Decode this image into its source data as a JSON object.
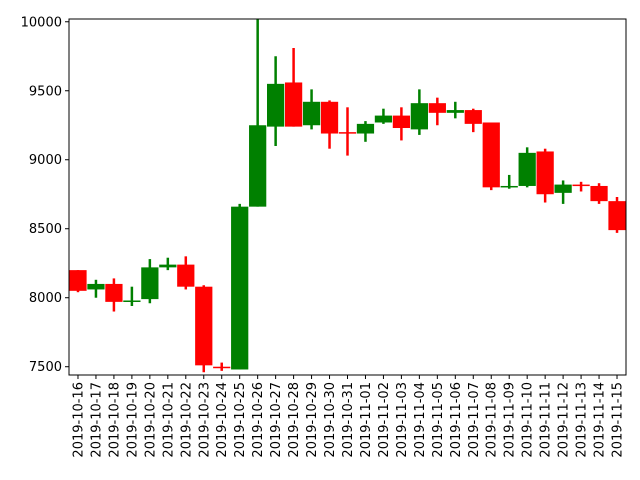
{
  "chart_data": {
    "type": "candlestick",
    "title": "",
    "xlabel": "",
    "ylabel": "",
    "ylim": [
      7440,
      10020
    ],
    "yticks": [
      7500,
      8000,
      8500,
      9000,
      9500,
      10000
    ],
    "ytick_labels": [
      "7500",
      "8000",
      "8500",
      "9000",
      "9500",
      "10000"
    ],
    "grid": false,
    "up_color": "#008000",
    "down_color": "#ff0000",
    "date_labels": [
      "2019-10-16",
      "2019-10-17",
      "2019-10-18",
      "2019-10-19",
      "2019-10-20",
      "2019-10-21",
      "2019-10-22",
      "2019-10-23",
      "2019-10-24",
      "2019-10-25",
      "2019-10-26",
      "2019-10-27",
      "2019-10-28",
      "2019-10-29",
      "2019-10-30",
      "2019-10-31",
      "2019-11-01",
      "2019-11-02",
      "2019-11-03",
      "2019-11-04",
      "2019-11-05",
      "2019-11-06",
      "2019-11-07",
      "2019-11-08",
      "2019-11-09",
      "2019-11-10",
      "2019-11-11",
      "2019-11-12",
      "2019-11-13",
      "2019-11-14",
      "2019-11-15"
    ],
    "candles": [
      {
        "x": "2019-10-16",
        "open": 8200,
        "high": 8200,
        "low": 8040,
        "close": 8050
      },
      {
        "x": "2019-10-17",
        "open": 8060,
        "high": 8130,
        "low": 8000,
        "close": 8100
      },
      {
        "x": "2019-10-18",
        "open": 8100,
        "high": 8140,
        "low": 7900,
        "close": 7970
      },
      {
        "x": "2019-10-19",
        "open": 7970,
        "high": 8080,
        "low": 7940,
        "close": 7980
      },
      {
        "x": "2019-10-20",
        "open": 7990,
        "high": 8280,
        "low": 7960,
        "close": 8220
      },
      {
        "x": "2019-10-21",
        "open": 8220,
        "high": 8290,
        "low": 8200,
        "close": 8240
      },
      {
        "x": "2019-10-22",
        "open": 8240,
        "high": 8300,
        "low": 8060,
        "close": 8080
      },
      {
        "x": "2019-10-23",
        "open": 8080,
        "high": 8090,
        "low": 7460,
        "close": 7510
      },
      {
        "x": "2019-10-24",
        "open": 7500,
        "high": 7530,
        "low": 7470,
        "close": 7490
      },
      {
        "x": "2019-10-25",
        "open": 7480,
        "high": 8680,
        "low": 7480,
        "close": 8660
      },
      {
        "x": "2019-10-26",
        "open": 8660,
        "high": 10020,
        "low": 8660,
        "close": 9250
      },
      {
        "x": "2019-10-27",
        "open": 9240,
        "high": 9750,
        "low": 9100,
        "close": 9550
      },
      {
        "x": "2019-10-28",
        "open": 9560,
        "high": 9810,
        "low": 9240,
        "close": 9240
      },
      {
        "x": "2019-10-29",
        "open": 9250,
        "high": 9510,
        "low": 9220,
        "close": 9420
      },
      {
        "x": "2019-10-30",
        "open": 9420,
        "high": 9430,
        "low": 9080,
        "close": 9190
      },
      {
        "x": "2019-10-31",
        "open": 9200,
        "high": 9380,
        "low": 9030,
        "close": 9190
      },
      {
        "x": "2019-11-01",
        "open": 9190,
        "high": 9280,
        "low": 9130,
        "close": 9260
      },
      {
        "x": "2019-11-02",
        "open": 9270,
        "high": 9370,
        "low": 9260,
        "close": 9320
      },
      {
        "x": "2019-11-03",
        "open": 9320,
        "high": 9380,
        "low": 9140,
        "close": 9230
      },
      {
        "x": "2019-11-04",
        "open": 9220,
        "high": 9510,
        "low": 9180,
        "close": 9410
      },
      {
        "x": "2019-11-05",
        "open": 9410,
        "high": 9450,
        "low": 9250,
        "close": 9340
      },
      {
        "x": "2019-11-06",
        "open": 9340,
        "high": 9420,
        "low": 9300,
        "close": 9360
      },
      {
        "x": "2019-11-07",
        "open": 9360,
        "high": 9370,
        "low": 9200,
        "close": 9260
      },
      {
        "x": "2019-11-08",
        "open": 9270,
        "high": 9270,
        "low": 8780,
        "close": 8800
      },
      {
        "x": "2019-11-09",
        "open": 8800,
        "high": 8890,
        "low": 8790,
        "close": 8810
      },
      {
        "x": "2019-11-10",
        "open": 8810,
        "high": 9090,
        "low": 8800,
        "close": 9050
      },
      {
        "x": "2019-11-11",
        "open": 9060,
        "high": 9080,
        "low": 8690,
        "close": 8750
      },
      {
        "x": "2019-11-12",
        "open": 8760,
        "high": 8850,
        "low": 8680,
        "close": 8820
      },
      {
        "x": "2019-11-13",
        "open": 8820,
        "high": 8840,
        "low": 8770,
        "close": 8810
      },
      {
        "x": "2019-11-14",
        "open": 8810,
        "high": 8830,
        "low": 8680,
        "close": 8700
      },
      {
        "x": "2019-11-15",
        "open": 8700,
        "high": 8730,
        "low": 8470,
        "close": 8490
      }
    ]
  }
}
